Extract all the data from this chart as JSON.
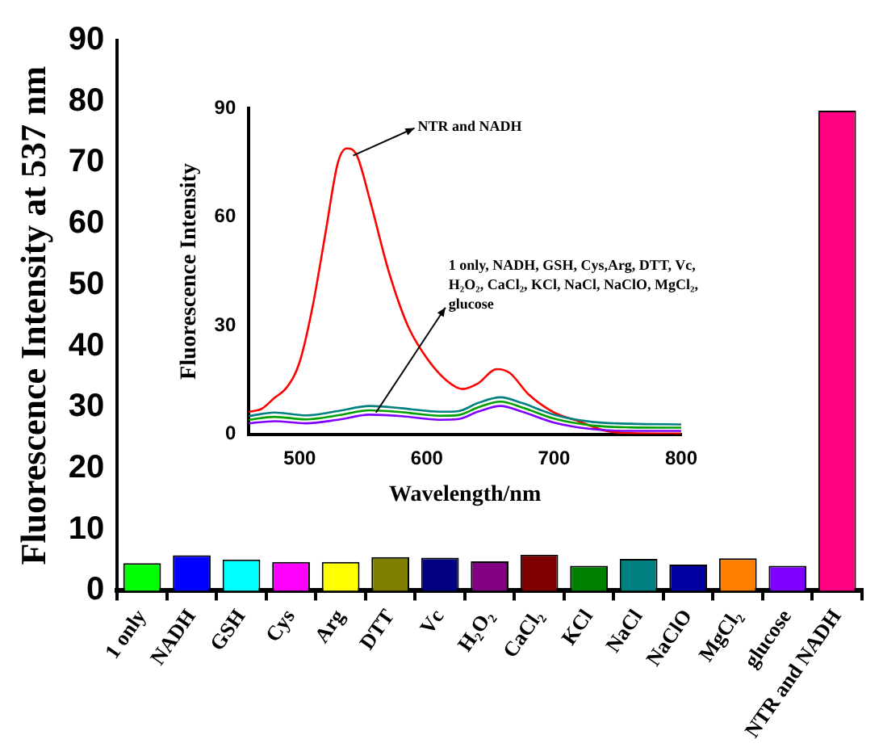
{
  "chart_data": [
    {
      "type": "bar",
      "ylabel": "Fluorescence Intensity at 537 nm",
      "categories": [
        "1 only",
        "NADH",
        "GSH",
        "Cys",
        "Arg",
        "DTT",
        "Vc",
        "H₂O₂",
        "CaCl₂",
        "KCl",
        "NaCl",
        "NaClO",
        "MgCl₂",
        "glucose",
        "NTR and NADH"
      ],
      "values": [
        4.5,
        5.8,
        5.1,
        4.7,
        4.7,
        5.5,
        5.4,
        4.8,
        5.9,
        4.1,
        5.2,
        4.3,
        5.3,
        4.1,
        78.5
      ],
      "colors": [
        "#00ff00",
        "#0000ff",
        "#00ffff",
        "#ff00ff",
        "#ffff00",
        "#808000",
        "#000080",
        "#800080",
        "#800000",
        "#008000",
        "#008080",
        "#0000a0",
        "#ff8000",
        "#8000ff",
        "#ff0080"
      ],
      "ylim": [
        0,
        90
      ],
      "yticks": [
        0,
        10,
        20,
        30,
        40,
        50,
        60,
        70,
        80,
        90
      ],
      "grid": false,
      "legend": false
    },
    {
      "type": "line",
      "xlabel": "Wavelength/nm",
      "ylabel": "Fluorescence Intensity",
      "xlim": [
        460,
        800
      ],
      "xticks": [
        500,
        600,
        700,
        800
      ],
      "ylim": [
        0,
        90
      ],
      "yticks": [
        0,
        30,
        60,
        90
      ],
      "grid": false,
      "legend": false,
      "marker": "none",
      "line_style": "solid",
      "x": [
        460,
        480,
        505,
        530,
        555,
        580,
        610,
        625,
        640,
        658,
        675,
        700,
        730,
        760,
        800
      ],
      "series": [
        {
          "color": "#008080",
          "values": [
            5.0,
            6.0,
            5.2,
            6.4,
            7.8,
            7.2,
            6.2,
            6.4,
            8.6,
            10.2,
            8.6,
            5.4,
            3.4,
            2.9,
            2.7
          ]
        },
        {
          "color": "#00a000",
          "values": [
            4.0,
            4.8,
            4.1,
            5.2,
            6.6,
            6.1,
            5.1,
            5.3,
            7.4,
            9.0,
            7.4,
            4.3,
            2.4,
            1.9,
            1.8
          ]
        },
        {
          "color": "#8000ff",
          "values": [
            3.0,
            3.6,
            3.0,
            4.0,
            5.4,
            5.0,
            4.0,
            4.2,
            6.2,
            7.8,
            6.2,
            3.2,
            1.4,
            0.9,
            0.9
          ]
        },
        {
          "color": "#ff0000",
          "x": [
            460,
            470,
            480,
            490,
            500,
            510,
            520,
            530,
            537,
            545,
            555,
            570,
            585,
            600,
            615,
            628,
            640,
            655,
            665,
            680,
            700,
            720,
            740,
            760,
            800
          ],
          "values": [
            6.2,
            7,
            10,
            13,
            20,
            35,
            55,
            75,
            79,
            77,
            65,
            45,
            30,
            21,
            15,
            12.5,
            14,
            18,
            17,
            11,
            6,
            3.5,
            1,
            0.3,
            0.2
          ]
        }
      ],
      "annotations": [
        {
          "text": "NTR and NADH",
          "x": 542,
          "y": 77
        },
        {
          "text": "1 only, NADH, GSH, Cys,Arg, DTT, Vc, H₂O₂, CaCl₂, KCl, NaCl, NaClO, MgCl₂, glucose",
          "x": 560,
          "y": 6
        }
      ]
    }
  ]
}
